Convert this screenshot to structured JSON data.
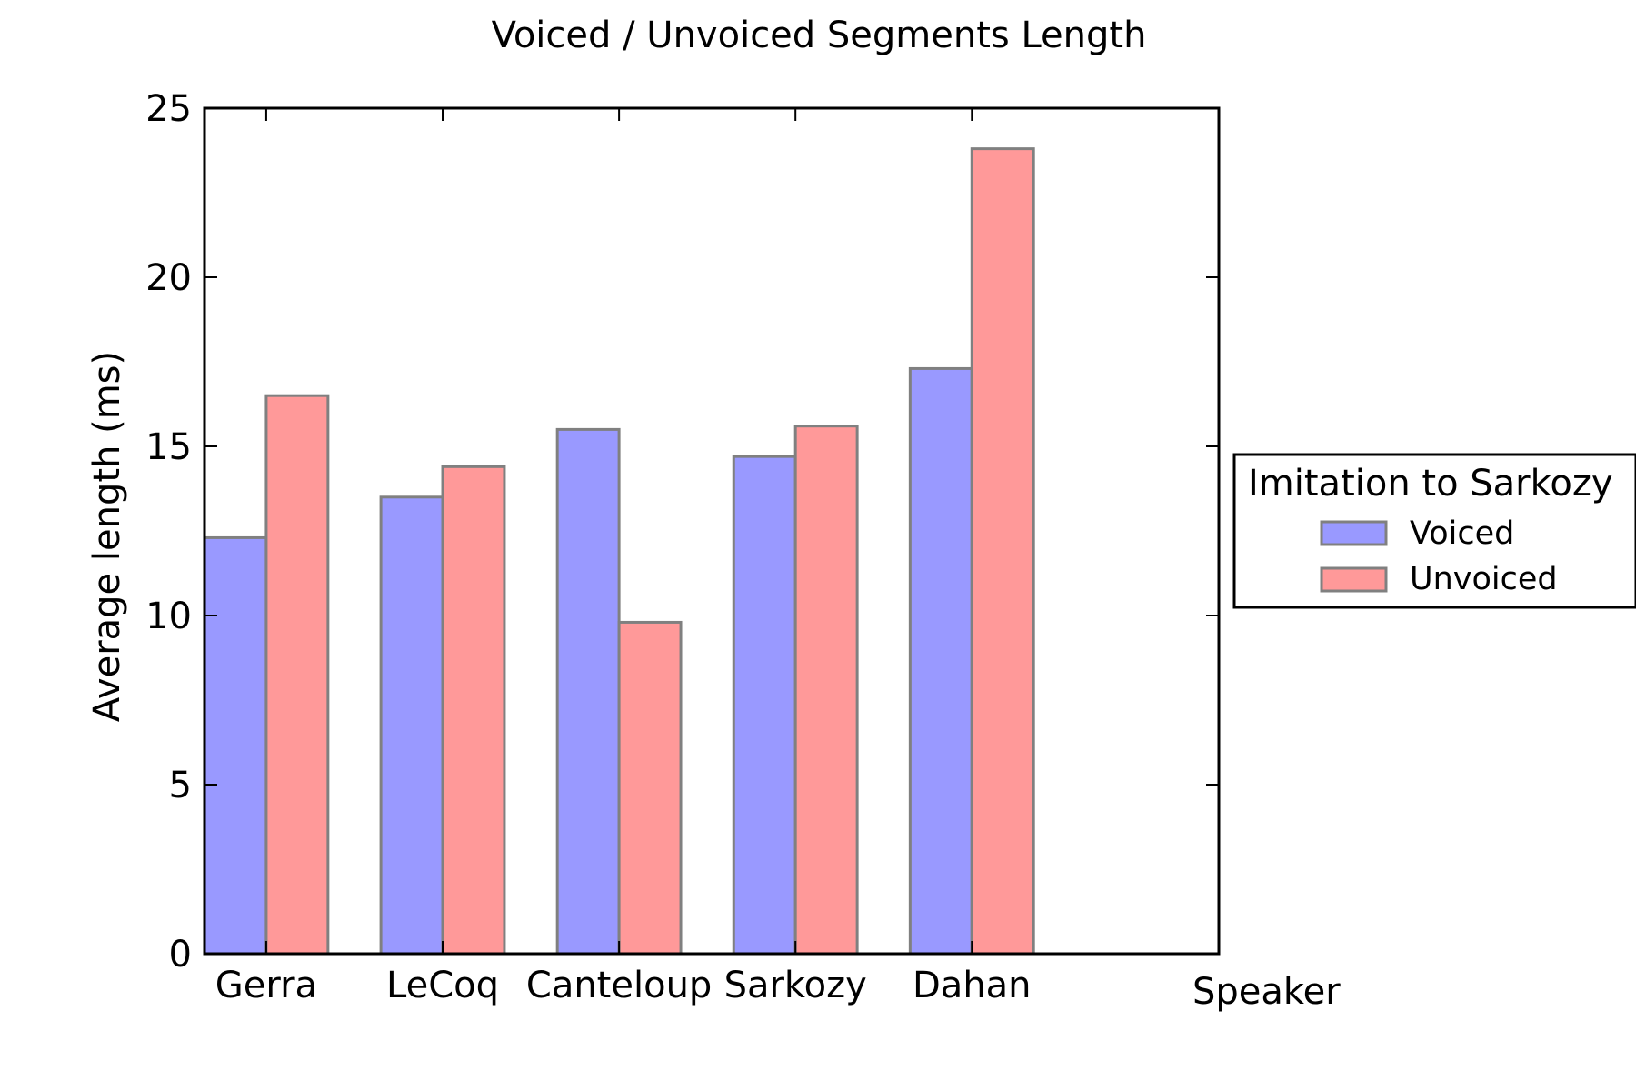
{
  "chart_data": {
    "type": "bar",
    "title": "Voiced / Unvoiced Segments Length",
    "xlabel": "Speaker",
    "ylabel": "Average length (ms)",
    "categories": [
      "Gerra",
      "LeCoq",
      "Canteloup",
      "Sarkozy",
      "Dahan"
    ],
    "series": [
      {
        "name": "Voiced",
        "color": "#9999ff",
        "values": [
          12.3,
          13.5,
          15.5,
          14.7,
          17.3
        ]
      },
      {
        "name": "Unvoiced",
        "color": "#ff9999",
        "values": [
          16.5,
          14.4,
          9.8,
          15.6,
          23.8
        ]
      }
    ],
    "ylim": [
      0,
      25
    ],
    "yticks": [
      0,
      5,
      10,
      15,
      20,
      25
    ],
    "grid": false,
    "legend": {
      "title": "Imitation to Sarkozy",
      "placement": "outside-right"
    }
  }
}
